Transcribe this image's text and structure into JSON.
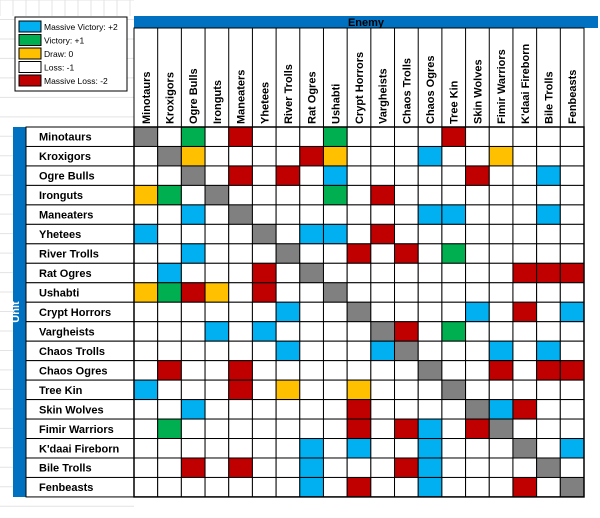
{
  "header": {
    "enemy_label": "Enemy",
    "unit_label": "Unit"
  },
  "legend": [
    {
      "label": "Massive Victory: +2",
      "color": "#00b0f0",
      "value": 2
    },
    {
      "label": "Victory: +1",
      "color": "#00b050",
      "value": 1
    },
    {
      "label": "Draw: 0",
      "color": "#ffc000",
      "value": 0
    },
    {
      "label": "Loss: -1",
      "color": "#ffffff",
      "value": -1
    },
    {
      "label": "Massive Loss: -2",
      "color": "#c00000",
      "value": -2
    }
  ],
  "colors": {
    "header_blue": "#0070c0",
    "diagonal_gray": "#808080",
    "massive_victory": "#00b0f0",
    "victory": "#00b050",
    "draw": "#ffc000",
    "massive_loss": "#c00000",
    "grid": "#000000"
  },
  "units": [
    "Minotaurs",
    "Kroxigors",
    "Ogre Bulls",
    "Ironguts",
    "Maneaters",
    "Yhetees",
    "River Trolls",
    "Rat Ogres",
    "Ushabti",
    "Crypt Horrors",
    "Vargheists",
    "Chaos Trolls",
    "Chaos Ogres",
    "Tree Kin",
    "Skin Wolves",
    "Fimir Warriors",
    "K'daai Fireborn",
    "Bile Trolls",
    "Fenbeasts"
  ],
  "matrix": [
    "GWVWMWWWVWWWWMWWWWW",
    "WGDWWWWMDWWWAWWDWWW",
    "WWGWMWMWAWWWWWMWWAW",
    "DVWGWWWWVWMWWWWWWWW",
    "WWAWGWWWWWWWAAWWWAW",
    "AWWWWGWAAWMWWWWWWWW",
    "WWAWWWGWWMWMWVWWWWW",
    "WAWWWMWGWWWWWWWWMMM",
    "DVMDWMWWGWWWWWWWWWW",
    "WWWWWWAWWGWWWWAWMWA",
    "WWWAWAWWWWGMWVWWWWW",
    "WWWWWWAWWWAGWWWAWAW",
    "WMWWMWWWWWWWGWWMWMM",
    "AWWWMWDWWDWWWGWWWWW",
    "WWAWWWWWWMWWWWGAMWW",
    "WVWWWWWWWMWMAWMGWWW",
    "WWWWWWWAWAWWAWWWGWA",
    "WWMWMWWAWWWMAWWWWGW",
    "WWWWWWWAWMWWAWWWMWG"
  ]
}
